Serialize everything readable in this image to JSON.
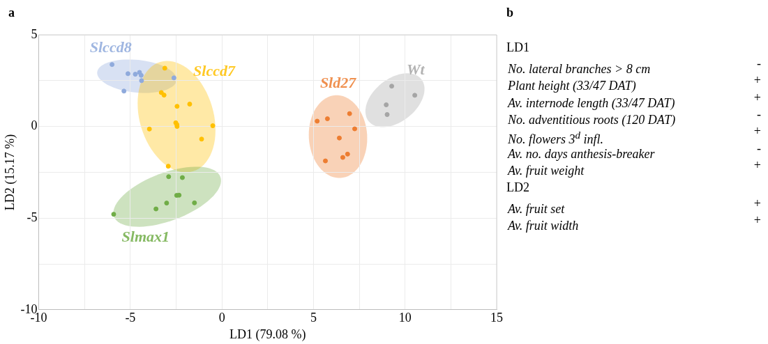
{
  "chart_data": [
    {
      "type": "scatter",
      "title": "a",
      "xlabel": "LD1 (79.08 %)",
      "ylabel": "LD2 (15.17 %)",
      "xlim": [
        -10,
        15
      ],
      "ylim": [
        -10,
        5
      ],
      "xticks": [
        -10,
        {
          "value": -7.5,
          "label": null
        },
        -5,
        {
          "value": -2.5,
          "label": null
        },
        0,
        {
          "value": 2.5,
          "label": null
        },
        5,
        {
          "value": 7.5,
          "label": null
        },
        10,
        {
          "value": 12.5,
          "label": null
        },
        15
      ],
      "yticks": [
        -10,
        {
          "value": -7.5,
          "label": null
        },
        -5,
        {
          "value": -2.5,
          "label": null
        },
        0,
        {
          "value": 2.5,
          "label": null
        },
        5
      ],
      "grid": true,
      "legend": false,
      "marker": "circle",
      "series": [
        {
          "name": "Slccd8",
          "color": "#8faadc",
          "x": [
            -6.0,
            -5.13,
            -4.73,
            -4.5,
            -4.41,
            -4.39,
            -2.62,
            -5.35
          ],
          "values": [
            3.38,
            2.88,
            2.85,
            2.95,
            2.79,
            2.5,
            2.65,
            1.93
          ]
        },
        {
          "name": "Slccd7",
          "color": "#ffc000",
          "x": [
            -3.12,
            -3.31,
            -3.16,
            -2.45,
            -1.76,
            -2.52,
            -2.46,
            -2.45,
            -3.96,
            -0.5,
            -1.11,
            -2.93
          ],
          "values": [
            3.18,
            1.85,
            1.71,
            1.1,
            1.22,
            0.2,
            0.1,
            0.0,
            -0.14,
            0.04,
            -0.69,
            -2.17
          ]
        },
        {
          "name": "Slmax1",
          "color": "#70ad47",
          "x": [
            -2.91,
            -2.16,
            -2.47,
            -2.34,
            -3.02,
            -1.5,
            -3.6,
            -5.91
          ],
          "values": [
            -2.74,
            -2.79,
            -3.76,
            -3.75,
            -4.18,
            -4.17,
            -4.5,
            -4.79
          ]
        },
        {
          "name": "Sld27",
          "color": "#ed7d31",
          "x": [
            5.2,
            5.76,
            6.97,
            7.25,
            6.41,
            6.86,
            6.6,
            5.65
          ],
          "values": [
            0.29,
            0.42,
            0.7,
            -0.13,
            -0.63,
            -1.51,
            -1.69,
            -1.88
          ]
        },
        {
          "name": "Wt",
          "color": "#a5a5a5",
          "x": [
            9.27,
            10.53,
            8.97,
            9.02
          ],
          "values": [
            2.2,
            1.7,
            1.18,
            0.65
          ]
        }
      ]
    },
    {
      "type": "other",
      "title": "b",
      "annotations": [
        "LD1",
        "No. lateral branches > 8 cm",
        "-",
        "Plant height (33/47 DAT)",
        "+",
        "Av. internode length (33/47 DAT)",
        "+",
        "No. adventitious roots (120 DAT)",
        "-",
        "No. flowers 3$^{d}$ infl.",
        "+",
        "Av. no. days anthesis-breaker",
        "-",
        "Av. fruit weight",
        "+",
        "LD2",
        "Av. fruit set",
        "+",
        "Av. fruit width",
        "+"
      ]
    }
  ]
}
